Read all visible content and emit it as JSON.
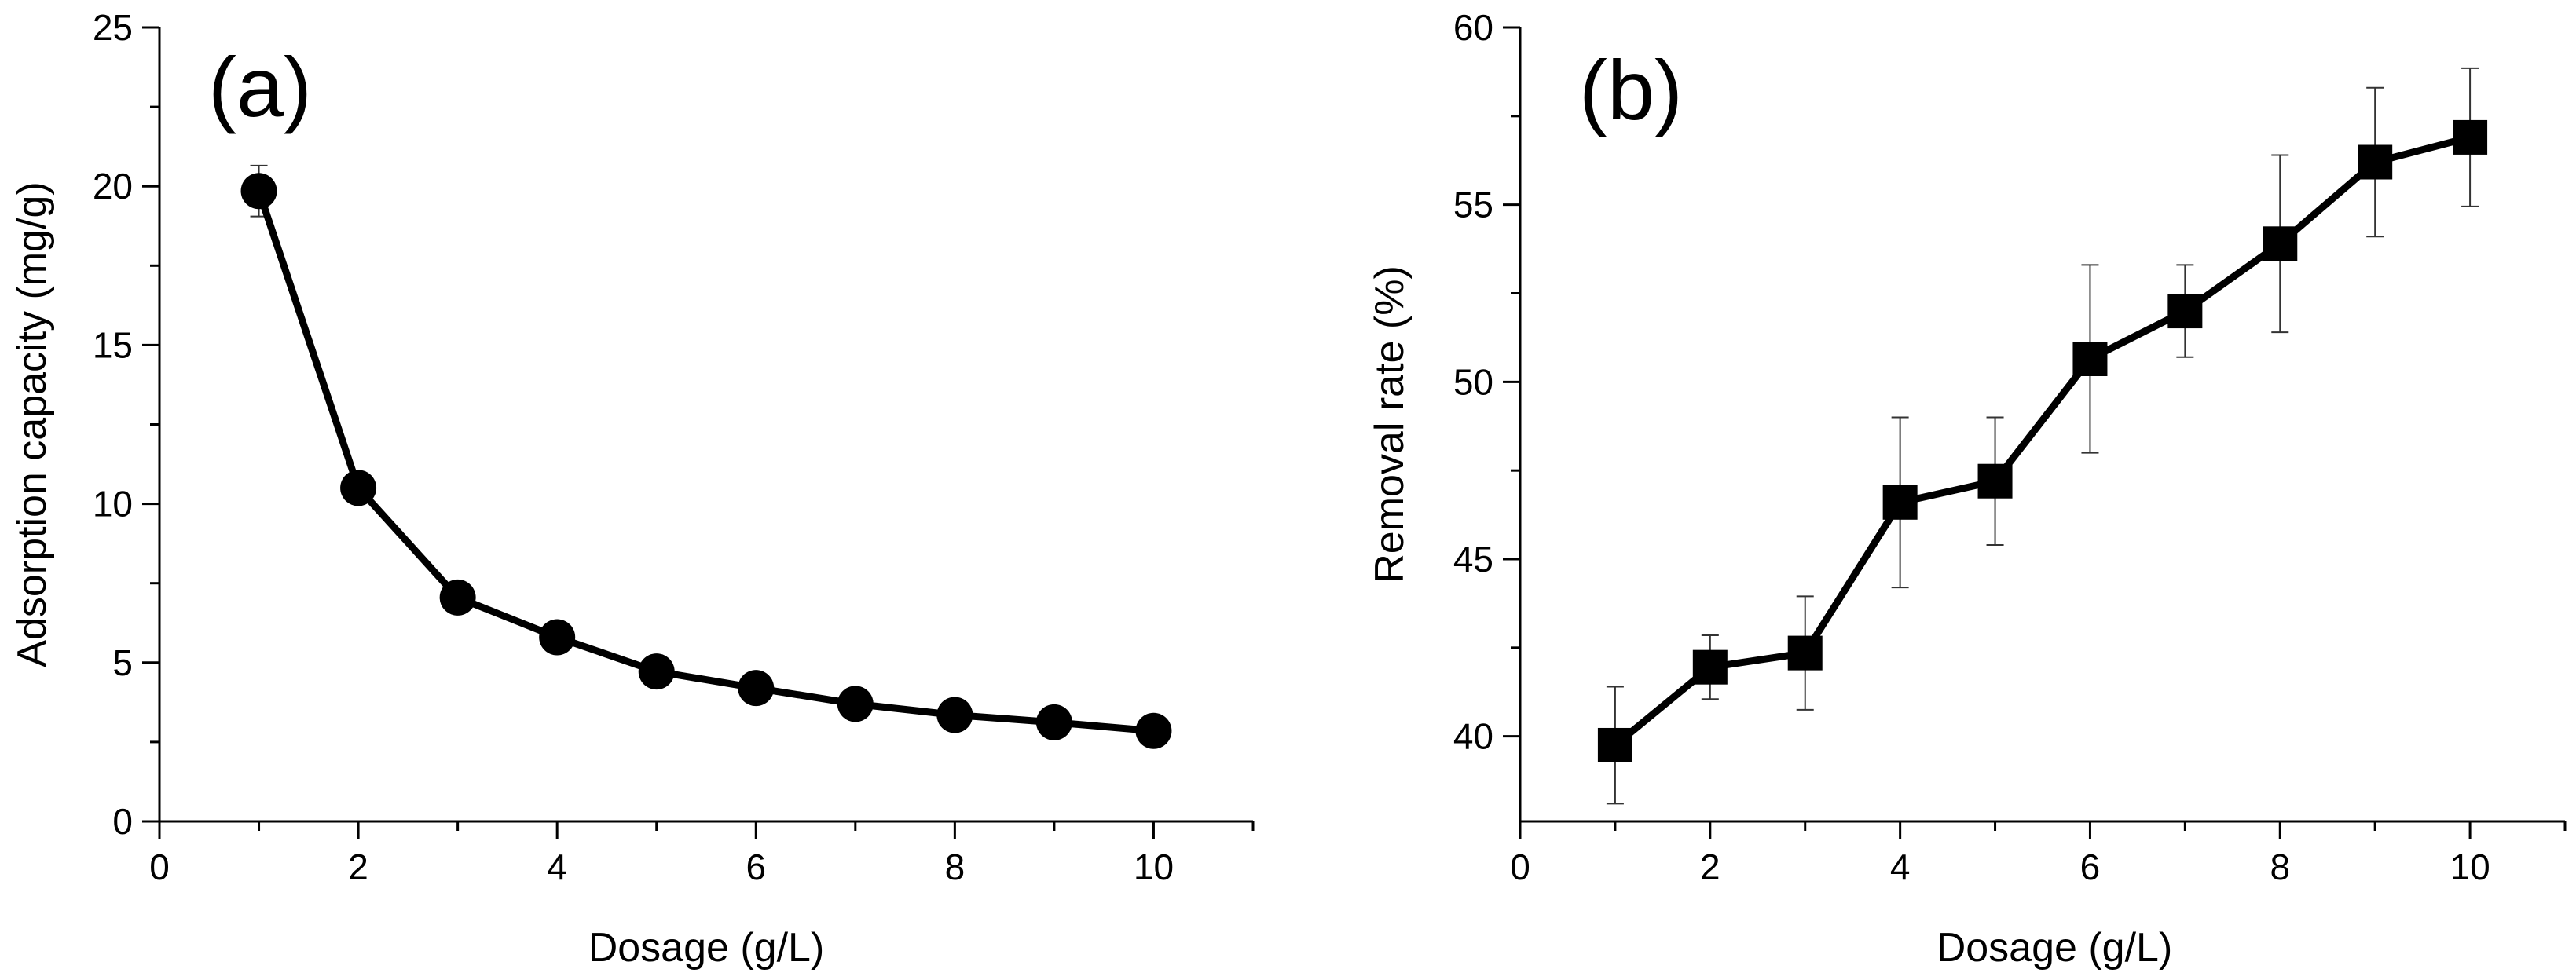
{
  "chart_data": [
    {
      "type": "line",
      "panel_label": "(a)",
      "title": "",
      "xlabel": "Dosage (g/L)",
      "ylabel": "Adsorption capacity (mg/g)",
      "xlim": [
        0,
        11
      ],
      "ylim": [
        0,
        25
      ],
      "xticks": [
        "0",
        "2",
        "4",
        "6",
        "8",
        "10"
      ],
      "yticks": [
        "0",
        "5",
        "10",
        "15",
        "20",
        "25"
      ],
      "marker": "circle",
      "color": "#000000",
      "grid": false,
      "series": [
        {
          "name": "Adsorption capacity",
          "x": [
            1,
            2,
            3,
            4,
            5,
            6,
            7,
            8,
            9,
            10
          ],
          "y": [
            19.85,
            10.5,
            7.05,
            5.8,
            4.72,
            4.2,
            3.7,
            3.35,
            3.12,
            2.85
          ],
          "error": [
            0.8,
            0,
            0,
            0,
            0,
            0,
            0,
            0,
            0,
            0
          ]
        }
      ]
    },
    {
      "type": "line",
      "panel_label": "(b)",
      "title": "",
      "xlabel": "Dosage (g/L)",
      "ylabel": "Removal rate (%)",
      "xlim": [
        0,
        11
      ],
      "ylim": [
        37.6,
        60
      ],
      "xticks": [
        "0",
        "2",
        "4",
        "6",
        "8",
        "10"
      ],
      "yticks": [
        "40",
        "45",
        "50",
        "55",
        "60"
      ],
      "marker": "square",
      "color": "#000000",
      "grid": false,
      "series": [
        {
          "name": "Removal rate",
          "x": [
            1,
            2,
            3,
            4,
            5,
            6,
            7,
            8,
            9,
            10
          ],
          "y": [
            39.75,
            41.95,
            42.35,
            46.6,
            47.2,
            50.65,
            52.0,
            53.9,
            56.2,
            56.9
          ],
          "error": [
            1.65,
            0.9,
            1.6,
            2.4,
            1.8,
            2.65,
            1.3,
            2.5,
            2.1,
            1.95
          ]
        }
      ]
    }
  ]
}
